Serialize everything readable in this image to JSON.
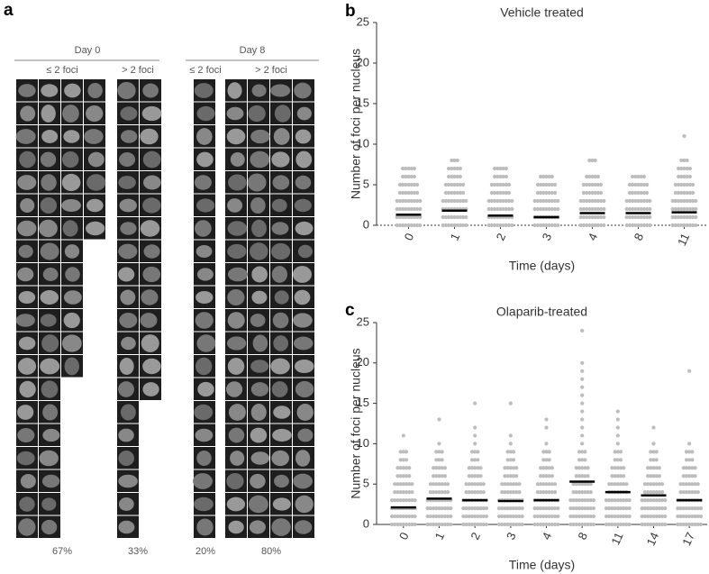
{
  "panel_a": {
    "label": "a",
    "groups": [
      {
        "title": "Day 0",
        "columns": [
          {
            "label": "≤ 2 foci",
            "percent": "67%"
          },
          {
            "label": "> 2 foci",
            "percent": "33%"
          }
        ]
      },
      {
        "title": "Day 8",
        "columns": [
          {
            "label": "≤ 2 foci",
            "percent": "20%"
          },
          {
            "label": "> 2 foci",
            "percent": "80%"
          }
        ]
      }
    ]
  },
  "chart_data": [
    {
      "type": "dot",
      "panel_label": "b",
      "title": "Vehicle treated",
      "xlabel": "Time (days)",
      "ylabel": "Number of foci per nucleus",
      "categories": [
        "0",
        "1",
        "2",
        "3",
        "4",
        "8",
        "11"
      ],
      "points": [
        [
          0,
          1,
          2,
          3,
          4,
          5,
          6,
          7
        ],
        [
          0,
          1,
          2,
          3,
          4,
          5,
          6,
          7,
          8
        ],
        [
          0,
          1,
          2,
          3,
          4,
          5,
          6,
          7
        ],
        [
          0,
          1,
          2,
          3,
          4,
          5,
          6
        ],
        [
          0,
          1,
          2,
          3,
          4,
          5,
          6,
          8
        ],
        [
          0,
          1,
          2,
          3,
          4,
          5,
          6
        ],
        [
          0,
          1,
          2,
          3,
          4,
          5,
          6,
          7,
          8,
          11
        ]
      ],
      "means": [
        1.3,
        1.8,
        1.2,
        1.0,
        1.5,
        1.5,
        1.6
      ],
      "point_color": "#bdbdbd",
      "mean_color": "#000000",
      "ylim": [
        0,
        25
      ],
      "yticks": [
        0,
        5,
        10,
        15,
        20,
        25
      ]
    },
    {
      "type": "dot",
      "panel_label": "c",
      "title": "Olaparib-treated",
      "xlabel": "Time (days)",
      "ylabel": "Number of foci per nucleus",
      "categories": [
        "0",
        "1",
        "2",
        "3",
        "4",
        "8",
        "11",
        "14",
        "17"
      ],
      "points": [
        [
          0,
          1,
          2,
          3,
          4,
          5,
          6,
          7,
          8,
          9,
          11
        ],
        [
          0,
          1,
          2,
          3,
          4,
          5,
          6,
          7,
          8,
          9,
          10,
          13
        ],
        [
          0,
          1,
          2,
          3,
          4,
          5,
          6,
          7,
          8,
          9,
          10,
          11,
          12,
          15
        ],
        [
          0,
          1,
          2,
          3,
          4,
          5,
          6,
          7,
          8,
          9,
          10,
          11,
          15
        ],
        [
          0,
          1,
          2,
          3,
          4,
          5,
          6,
          7,
          8,
          9,
          10,
          12,
          13
        ],
        [
          0,
          1,
          2,
          3,
          4,
          5,
          6,
          7,
          8,
          9,
          10,
          11,
          12,
          13,
          14,
          15,
          16,
          17,
          18,
          19,
          20,
          24
        ],
        [
          0,
          1,
          2,
          3,
          4,
          5,
          6,
          7,
          8,
          9,
          10,
          11,
          12,
          13,
          14
        ],
        [
          0,
          1,
          2,
          3,
          4,
          5,
          6,
          7,
          8,
          9,
          10,
          12
        ],
        [
          0,
          1,
          2,
          3,
          4,
          5,
          6,
          7,
          8,
          9,
          10,
          19
        ]
      ],
      "means": [
        2.1,
        3.2,
        3.0,
        2.9,
        3.0,
        5.3,
        4.0,
        3.6,
        3.0
      ],
      "point_color": "#bdbdbd",
      "mean_color": "#000000",
      "ylim": [
        0,
        25
      ],
      "yticks": [
        0,
        5,
        10,
        15,
        20,
        25
      ]
    }
  ]
}
